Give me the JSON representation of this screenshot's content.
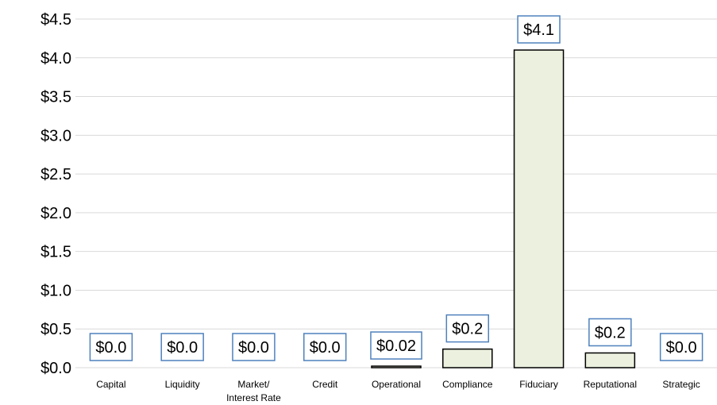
{
  "chart_data": {
    "type": "bar",
    "categories": [
      "Capital",
      "Liquidity",
      "Market/ Interest Rate",
      "Credit",
      "Operational",
      "Compliance",
      "Fiduciary",
      "Reputational",
      "Strategic"
    ],
    "values": [
      0,
      0,
      0,
      0,
      0.02,
      0.24,
      4.1,
      0.19,
      0
    ],
    "value_labels": [
      "$0.0",
      "$0.0",
      "$0.0",
      "$0.0",
      "$0.02",
      "$0.2",
      "$4.1",
      "$0.2",
      "$0.0"
    ],
    "color": "#ebf1de",
    "ylim": [
      0,
      4.5
    ],
    "yticks": [
      {
        "value": 0,
        "label": "$0.0"
      },
      {
        "value": 0.5,
        "label": "$0.5"
      },
      {
        "value": 1,
        "label": "$1.0"
      },
      {
        "value": 1.5,
        "label": "$1.5"
      },
      {
        "value": 2,
        "label": "$2.0"
      },
      {
        "value": 2.5,
        "label": "$2.5"
      },
      {
        "value": 3,
        "label": "$3.0"
      },
      {
        "value": 3.5,
        "label": "$3.5"
      },
      {
        "value": 4,
        "label": "$4.0"
      },
      {
        "value": 4.5,
        "label": "$4.5"
      }
    ],
    "grid": true
  }
}
